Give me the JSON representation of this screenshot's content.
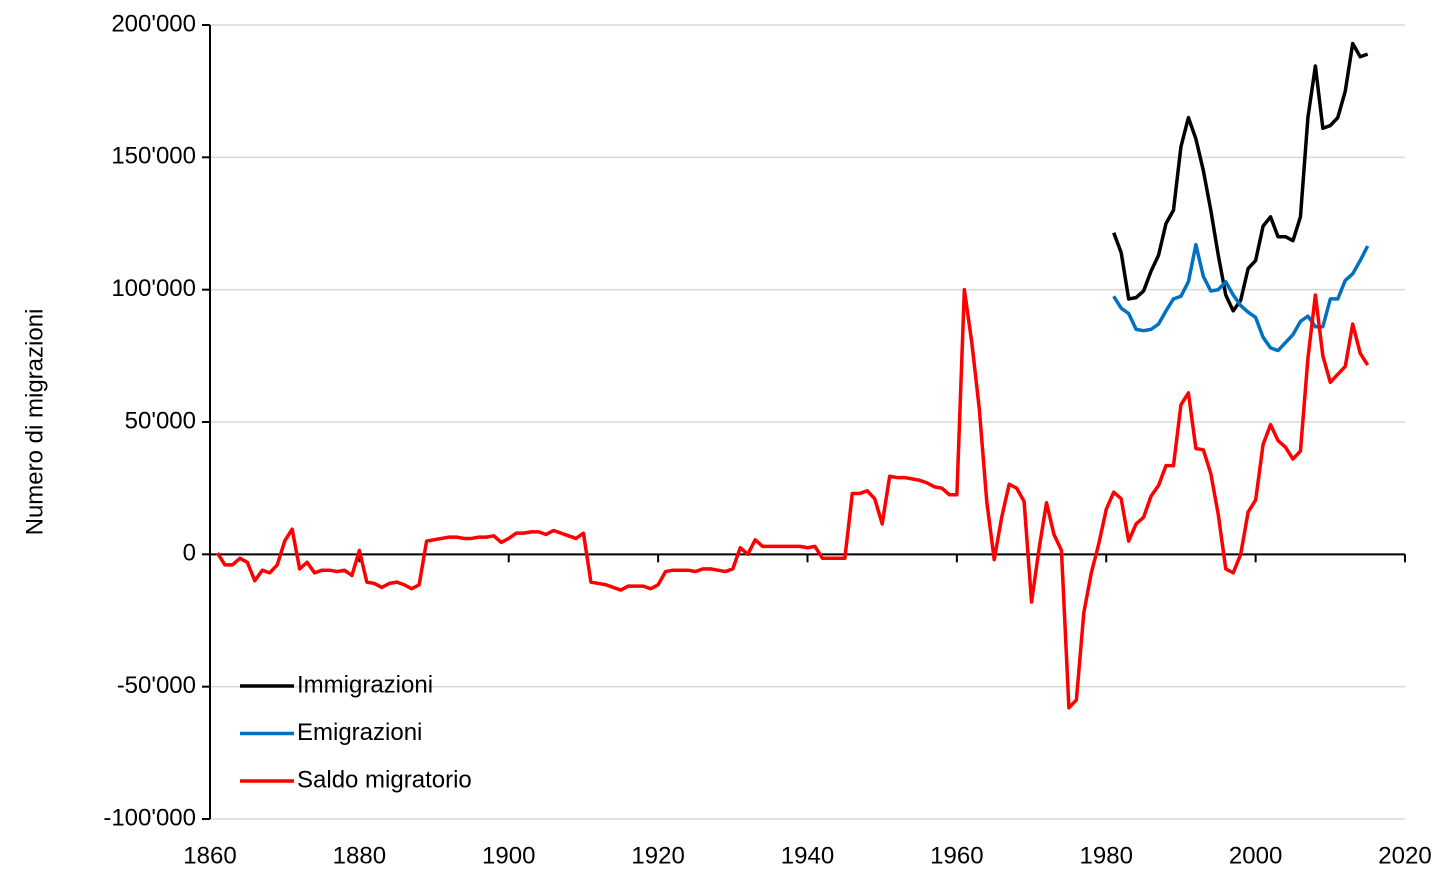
{
  "chart_data": {
    "type": "line",
    "ylabel": "Numero di migrazioni",
    "xlim": [
      1860,
      2020
    ],
    "xticks": [
      1860,
      1880,
      1900,
      1920,
      1940,
      1960,
      1980,
      2000,
      2020
    ],
    "ylim": [
      -100000,
      200000
    ],
    "yticks": [
      {
        "value": -100000,
        "label": "-100'000"
      },
      {
        "value": -50000,
        "label": "-50'000"
      },
      0,
      {
        "value": 50000,
        "label": "50'000"
      },
      {
        "value": 100000,
        "label": "100'000"
      },
      {
        "value": 150000,
        "label": "150'000"
      },
      {
        "value": 200000,
        "label": "200'000"
      }
    ],
    "grid": true,
    "legend": "lower left",
    "series": [
      {
        "name": "Immigrazioni",
        "color": "#000000",
        "x": [
          1981,
          1982,
          1983,
          1984,
          1985,
          1986,
          1987,
          1988,
          1989,
          1990,
          1991,
          1992,
          1993,
          1994,
          1995,
          1996,
          1997,
          1998,
          1999,
          2000,
          2001,
          2002,
          2003,
          2004,
          2005,
          2006,
          2007,
          2008,
          2009,
          2010,
          2011,
          2012,
          2013,
          2014,
          2015
        ],
        "values": [
          121500,
          114000,
          96500,
          97000,
          99500,
          107000,
          113000,
          125000,
          130000,
          154000,
          165000,
          157000,
          145000,
          130000,
          113000,
          98000,
          92000,
          96000,
          108000,
          111000,
          124000,
          127500,
          120000,
          120000,
          118500,
          127500,
          165000,
          184500,
          161000,
          162000,
          165000,
          175000,
          193000,
          188000,
          189000
        ]
      },
      {
        "name": "Emigrazioni",
        "color": "#0070c0",
        "x": [
          1981,
          1982,
          1983,
          1984,
          1985,
          1986,
          1987,
          1988,
          1989,
          1990,
          1991,
          1992,
          1993,
          1994,
          1995,
          1996,
          1997,
          1998,
          1999,
          2000,
          2001,
          2002,
          2003,
          2004,
          2005,
          2006,
          2007,
          2008,
          2009,
          2010,
          2011,
          2012,
          2013,
          2014,
          2015
        ],
        "values": [
          97500,
          93000,
          91000,
          85000,
          84500,
          85000,
          87000,
          92000,
          96500,
          97500,
          103000,
          117000,
          105000,
          99500,
          100000,
          103000,
          98000,
          94000,
          91500,
          89500,
          82000,
          78000,
          77000,
          80000,
          83000,
          88000,
          90000,
          86000,
          86000,
          96500,
          96500,
          103500,
          106000,
          111000,
          116500
        ]
      },
      {
        "name": "Saldo migratorio",
        "color": "#ff0000",
        "x": [
          1861,
          1862,
          1863,
          1864,
          1865,
          1866,
          1867,
          1868,
          1869,
          1870,
          1871,
          1872,
          1873,
          1874,
          1875,
          1876,
          1877,
          1878,
          1879,
          1880,
          1881,
          1882,
          1883,
          1884,
          1885,
          1886,
          1887,
          1888,
          1889,
          1890,
          1891,
          1892,
          1893,
          1894,
          1895,
          1896,
          1897,
          1898,
          1899,
          1900,
          1901,
          1902,
          1903,
          1904,
          1905,
          1906,
          1907,
          1908,
          1909,
          1910,
          1911,
          1912,
          1913,
          1914,
          1915,
          1916,
          1917,
          1918,
          1919,
          1920,
          1921,
          1922,
          1923,
          1924,
          1925,
          1926,
          1927,
          1928,
          1929,
          1930,
          1931,
          1932,
          1933,
          1934,
          1935,
          1936,
          1937,
          1938,
          1939,
          1940,
          1941,
          1942,
          1943,
          1944,
          1945,
          1946,
          1947,
          1948,
          1949,
          1950,
          1951,
          1952,
          1953,
          1954,
          1955,
          1956,
          1957,
          1958,
          1959,
          1960,
          1961,
          1962,
          1963,
          1964,
          1965,
          1966,
          1967,
          1968,
          1969,
          1970,
          1971,
          1972,
          1973,
          1974,
          1975,
          1976,
          1977,
          1978,
          1979,
          1980,
          1981,
          1982,
          1983,
          1984,
          1985,
          1986,
          1987,
          1988,
          1989,
          1990,
          1991,
          1992,
          1993,
          1994,
          1995,
          1996,
          1997,
          1998,
          1999,
          2000,
          2001,
          2002,
          2003,
          2004,
          2005,
          2006,
          2007,
          2008,
          2009,
          2010,
          2011,
          2012,
          2013,
          2014,
          2015
        ],
        "values": [
          500,
          -4000,
          -4000,
          -1500,
          -3000,
          -10000,
          -6000,
          -7000,
          -4000,
          5000,
          9500,
          -5500,
          -3000,
          -7000,
          -6000,
          -6000,
          -6500,
          -6000,
          -8000,
          1500,
          -10500,
          -11000,
          -12500,
          -11000,
          -10500,
          -11500,
          -13000,
          -11500,
          5000,
          5500,
          6000,
          6500,
          6500,
          6000,
          6000,
          6500,
          6500,
          7000,
          4500,
          6000,
          8000,
          8000,
          8500,
          8500,
          7500,
          9000,
          8000,
          7000,
          6000,
          8000,
          -10500,
          -11000,
          -11500,
          -12500,
          -13500,
          -12000,
          -12000,
          -12000,
          -13000,
          -11500,
          -6500,
          -6000,
          -6000,
          -6000,
          -6500,
          -5500,
          -5500,
          -6000,
          -6500,
          -5500,
          2500,
          0,
          5500,
          3000,
          3000,
          3000,
          3000,
          3000,
          3000,
          2500,
          3000,
          -1500,
          -1500,
          -1500,
          -1500,
          23000,
          23000,
          24000,
          21000,
          11500,
          29500,
          29000,
          29000,
          28500,
          28000,
          27000,
          25500,
          25000,
          22500,
          22500,
          100000,
          80000,
          55000,
          20000,
          -2000,
          14000,
          26500,
          25000,
          20000,
          -18000,
          2000,
          19500,
          7500,
          1500,
          -58000,
          -55000,
          -22000,
          -7000,
          4000,
          17000,
          23500,
          21000,
          5000,
          11500,
          14000,
          22000,
          26000,
          33500,
          33500,
          56500,
          61000,
          40000,
          39500,
          30500,
          15000,
          -5500,
          -7000,
          0,
          16000,
          20500,
          41500,
          49000,
          43000,
          40500,
          36000,
          39000,
          74000,
          98000,
          75000,
          65000,
          68000,
          71000,
          87000,
          76000,
          71500
        ]
      }
    ]
  }
}
